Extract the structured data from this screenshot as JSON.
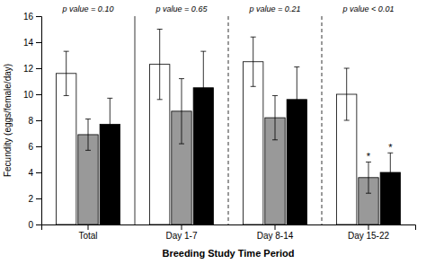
{
  "chart_data": {
    "type": "bar",
    "xlabel": "Breeding Study Time Period",
    "ylabel": "Fecundity (eggs/female/day)",
    "categories": [
      "Total",
      "Day 1-7",
      "Day 8-14",
      "Day 15-22"
    ],
    "series": [
      {
        "color": "white",
        "values": [
          11.6,
          12.3,
          12.5,
          10.0
        ],
        "errors": [
          1.7,
          2.7,
          1.9,
          2.0
        ]
      },
      {
        "color": "#999999",
        "values": [
          6.9,
          8.7,
          8.2,
          3.6
        ],
        "errors": [
          1.2,
          2.5,
          1.7,
          1.2
        ]
      },
      {
        "color": "black",
        "values": [
          7.7,
          10.5,
          9.6,
          4.0
        ],
        "errors": [
          2.0,
          2.8,
          2.5,
          1.5
        ]
      }
    ],
    "ylim": [
      0,
      16
    ],
    "yticks": [
      0,
      2,
      4,
      6,
      8,
      10,
      12,
      14,
      16
    ],
    "grid": false,
    "annotations": [
      {
        "text": "p value = 0.10",
        "category": 0
      },
      {
        "text": "p value = 0.65",
        "category": 1
      },
      {
        "text": "p value = 0.21",
        "category": 2
      },
      {
        "text": "p value < 0.01",
        "category": 3
      },
      {
        "text": "*",
        "category": 3,
        "series": 1
      },
      {
        "text": "*",
        "category": 3,
        "series": 2
      }
    ],
    "separators": [
      {
        "category": 1,
        "line_style": "solid"
      },
      {
        "category": 2,
        "line_style": "dashed"
      },
      {
        "category": 3,
        "line_style": "dashed"
      }
    ]
  }
}
